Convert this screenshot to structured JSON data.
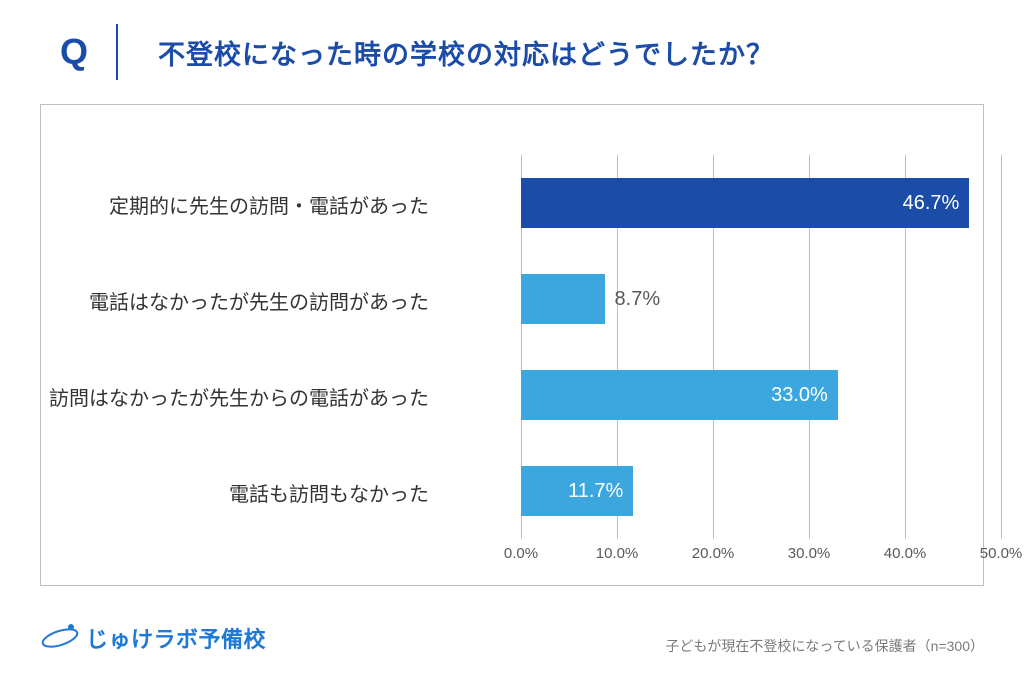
{
  "header": {
    "q_mark": "Q",
    "title": "不登校になった時の学校の対応はどうでしたか？"
  },
  "chart": {
    "type": "bar",
    "orientation": "horizontal",
    "xlim": [
      0,
      50
    ],
    "xtick_step": 10,
    "xtick_labels": [
      "0.0%",
      "10.0%",
      "20.0%",
      "30.0%",
      "40.0%",
      "50.0%"
    ],
    "categories": [
      "定期的に先生の訪問・電話があった",
      "電話はなかったが先生の訪問があった",
      "訪問はなかったが先生からの電話があった",
      "電話も訪問もなかった"
    ],
    "values": [
      46.7,
      8.7,
      33.0,
      11.7
    ],
    "value_labels": [
      "46.7%",
      "8.7%",
      "33.0%",
      "11.7%"
    ],
    "bar_colors": [
      "#1b4da8",
      "#3ba7de",
      "#3ba7de",
      "#3ba7de"
    ],
    "label_placement": [
      "inside",
      "outside",
      "inside",
      "inside"
    ],
    "grid_color": "#bfbfbf",
    "background_color": "#ffffff",
    "category_fontsize": 20,
    "tick_fontsize": 15
  },
  "footer": {
    "logo_text": "じゅけラボ予備校",
    "footnote": "子どもが現在不登校になっている保護者（n=300）"
  },
  "colors": {
    "brand_blue": "#1b4da8",
    "logo_blue": "#1e78d6",
    "text_gray": "#595959"
  }
}
